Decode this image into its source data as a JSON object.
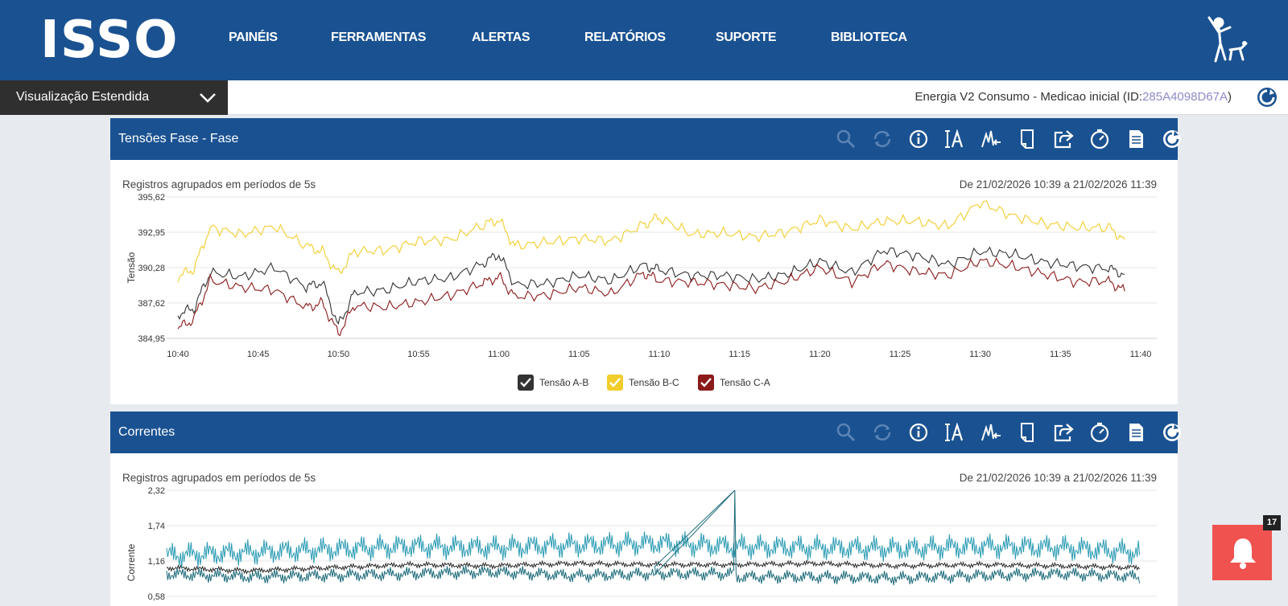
{
  "app": {
    "logo": "ISSO"
  },
  "nav": {
    "items": [
      {
        "label": "PAINÉIS"
      },
      {
        "label": "FERRAMENTAS"
      },
      {
        "label": "ALERTAS"
      },
      {
        "label": "RELATÓRIOS"
      },
      {
        "label": "SUPORTE"
      },
      {
        "label": "BIBLIOTECA"
      }
    ]
  },
  "view_select": {
    "value": "Visualização Estendida"
  },
  "device": {
    "prefix": "Energia V2 Consumo - Medicao inicial (ID:",
    "id": "285A4098D67A",
    "suffix": ")"
  },
  "toolbar_icons": [
    "zoom-icon",
    "refresh-icon",
    "info-icon",
    "font-size-icon",
    "peaks-icon",
    "page-icon",
    "share-icon",
    "clock-icon",
    "report-icon",
    "reload-icon"
  ],
  "colors": {
    "header": "#1a5291",
    "series_ab": "#333333",
    "series_bc": "#f2cd2c",
    "series_ca": "#8b1a1a",
    "alert": "#f0524f"
  },
  "panels": [
    {
      "title": "Tensões Fase - Fase",
      "note": "Registros agrupados em períodos de 5s",
      "range": "De 21/02/2026 10:39 a 21/02/2026 11:39"
    },
    {
      "title": "Correntes",
      "note": "Registros agrupados em períodos de 5s",
      "range": "De 21/02/2026 10:39 a 21/02/2026 11:39"
    }
  ],
  "chart_data": [
    {
      "type": "line",
      "ylabel": "Tensão",
      "y_ticks": [
        "395,62",
        "392,95",
        "390,28",
        "387,62",
        "384,95"
      ],
      "ylim": [
        384.95,
        395.62
      ],
      "x_ticks": [
        "10:40",
        "10:45",
        "10:50",
        "10:55",
        "11:00",
        "11:05",
        "11:10",
        "11:15",
        "11:20",
        "11:25",
        "11:30",
        "11:35",
        "11:40"
      ],
      "legend_position": "bottom-center",
      "grid": true,
      "x": [
        "10:40",
        "10:41",
        "10:42",
        "10:44",
        "10:46",
        "10:48",
        "10:49",
        "10:50",
        "10:51",
        "10:53",
        "10:55",
        "10:57",
        "10:59",
        "11:00",
        "11:01",
        "11:03",
        "11:05",
        "11:07",
        "11:09",
        "11:10",
        "11:12",
        "11:14",
        "11:16",
        "11:18",
        "11:20",
        "11:22",
        "11:24",
        "11:26",
        "11:28",
        "11:30",
        "11:32",
        "11:34",
        "11:36",
        "11:38",
        "11:39"
      ],
      "series": [
        {
          "name": "Tensão A-B",
          "color": "#333333",
          "values": [
            386.8,
            387.2,
            389.9,
            389.6,
            390.3,
            388.8,
            389.2,
            385.9,
            388.4,
            388.6,
            389.3,
            389.5,
            390.6,
            391.3,
            389.0,
            389.1,
            389.7,
            389.3,
            390.5,
            390.1,
            389.7,
            389.7,
            389.4,
            389.8,
            390.8,
            389.9,
            391.6,
            391.2,
            390.5,
            391.5,
            391.3,
            390.7,
            390.4,
            390.2,
            389.8
          ]
        },
        {
          "name": "Tensão B-C",
          "color": "#f2cd2c",
          "values": [
            389.6,
            390.2,
            393.3,
            392.8,
            393.4,
            391.9,
            391.5,
            389.8,
            391.5,
            391.6,
            392.3,
            392.4,
            393.5,
            393.9,
            391.9,
            392.2,
            392.5,
            392.3,
            393.5,
            394.1,
            392.8,
            392.9,
            392.6,
            393.0,
            393.9,
            393.2,
            393.8,
            393.8,
            393.4,
            395.2,
            394.2,
            393.6,
            393.3,
            393.3,
            392.4
          ]
        },
        {
          "name": "Tensão C-A",
          "color": "#8b1a1a",
          "values": [
            385.7,
            386.4,
            389.3,
            388.8,
            388.6,
            387.3,
            387.6,
            385.3,
            387.4,
            387.3,
            387.7,
            388.2,
            389.1,
            389.6,
            388.1,
            388.2,
            388.8,
            388.3,
            389.9,
            389.3,
            389.2,
            389.0,
            388.7,
            389.3,
            390.3,
            389.2,
            390.6,
            390.0,
            389.7,
            390.8,
            390.4,
            389.8,
            389.2,
            389.3,
            388.5
          ]
        }
      ]
    },
    {
      "type": "line",
      "ylabel": "Corrente",
      "y_ticks": [
        "2,32",
        "1,74",
        "1,16",
        "0,58"
      ],
      "ylim": [
        0.58,
        2.32
      ],
      "x": [
        "10:40",
        "10:45",
        "10:50",
        "10:55",
        "11:00",
        "11:05",
        "11:10",
        "11:15",
        "11:20",
        "11:25",
        "11:30",
        "11:35",
        "11:40"
      ],
      "grid": true,
      "series": [
        {
          "color": "#2b2b2b",
          "values": [
            1.05,
            1.0,
            1.05,
            1.1,
            1.08,
            1.12,
            1.1,
            1.1,
            1.12,
            1.08,
            1.1,
            1.08,
            1.05
          ]
        },
        {
          "color": "#2a9bb3",
          "values": [
            1.25,
            1.3,
            1.35,
            1.4,
            1.38,
            1.42,
            1.45,
            1.4,
            1.38,
            1.36,
            1.4,
            1.38,
            1.3
          ]
        },
        {
          "color": "#1d6b7a",
          "values": [
            0.95,
            0.9,
            0.92,
            0.95,
            0.98,
            0.92,
            0.95,
            2.32,
            0.9,
            0.88,
            0.92,
            0.95,
            0.9
          ]
        }
      ]
    }
  ],
  "alerts": {
    "count": "17"
  }
}
